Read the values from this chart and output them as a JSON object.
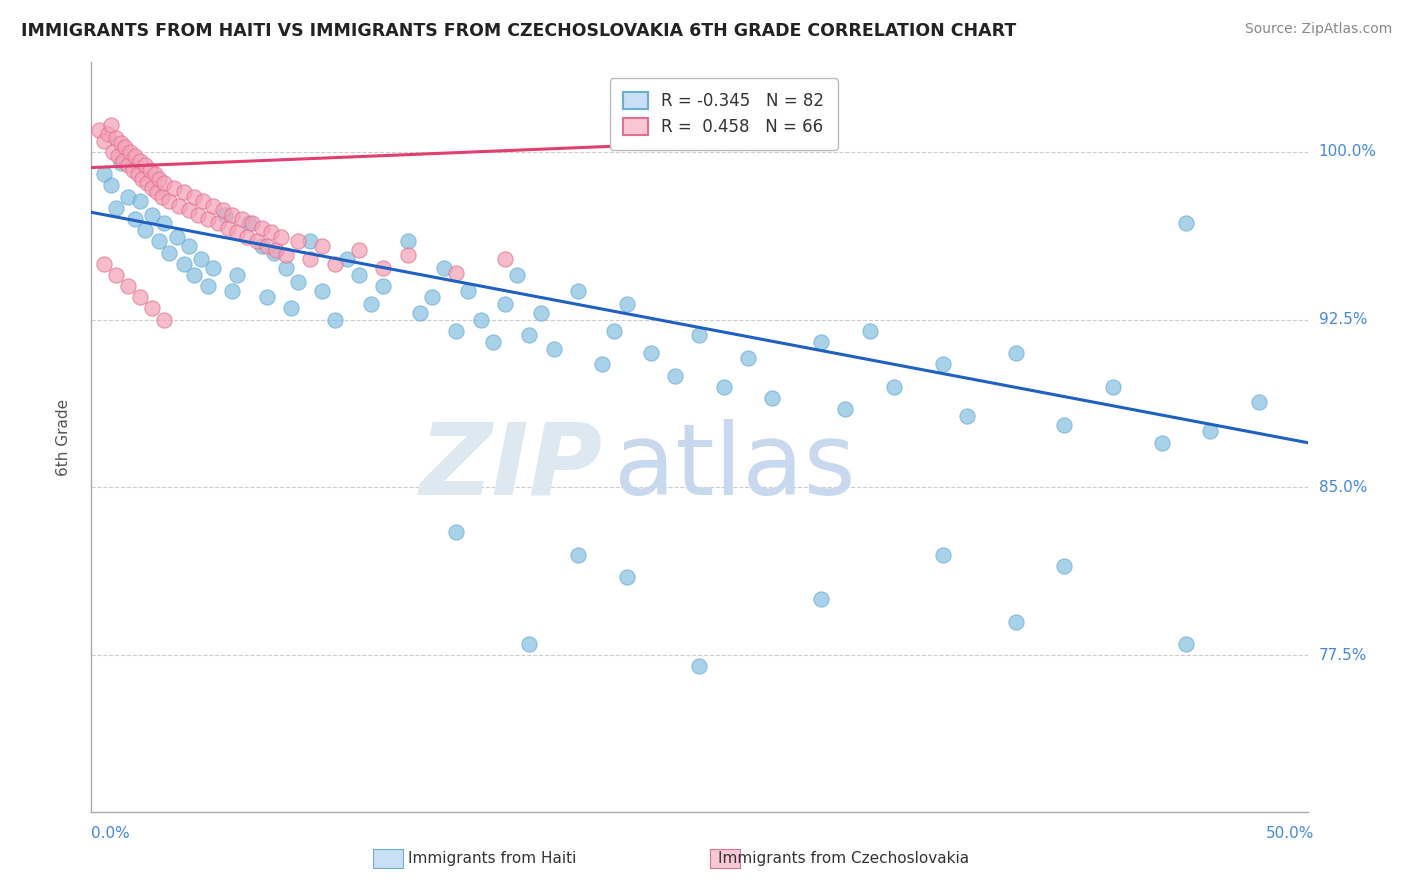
{
  "title": "IMMIGRANTS FROM HAITI VS IMMIGRANTS FROM CZECHOSLOVAKIA 6TH GRADE CORRELATION CHART",
  "source": "Source: ZipAtlas.com",
  "ylabel": "6th Grade",
  "xmin": 0.0,
  "xmax": 0.5,
  "ymin": 0.705,
  "ymax": 1.04,
  "yticks": [
    0.775,
    0.85,
    0.925,
    1.0
  ],
  "ytick_labels": [
    "77.5%",
    "85.0%",
    "92.5%",
    "100.0%"
  ],
  "haiti_color": "#85bfe0",
  "haiti_edge": "#6aaed6",
  "czech_color": "#f4a0b5",
  "czech_edge": "#e07090",
  "haiti_R": -0.345,
  "haiti_N": 82,
  "czech_R": 0.458,
  "czech_N": 66,
  "haiti_line_color": "#2060c0",
  "czech_line_color": "#e04070",
  "haiti_line_x0": 0.0,
  "haiti_line_y0": 0.973,
  "haiti_line_x1": 0.5,
  "haiti_line_y1": 0.87,
  "czech_line_x0": 0.0,
  "czech_line_y0": 0.993,
  "czech_line_x1": 0.27,
  "czech_line_y1": 1.005,
  "haiti_dots": [
    [
      0.005,
      0.99
    ],
    [
      0.008,
      0.985
    ],
    [
      0.01,
      0.975
    ],
    [
      0.012,
      0.995
    ],
    [
      0.015,
      0.98
    ],
    [
      0.018,
      0.97
    ],
    [
      0.02,
      0.978
    ],
    [
      0.022,
      0.965
    ],
    [
      0.025,
      0.972
    ],
    [
      0.028,
      0.96
    ],
    [
      0.03,
      0.968
    ],
    [
      0.032,
      0.955
    ],
    [
      0.035,
      0.962
    ],
    [
      0.038,
      0.95
    ],
    [
      0.04,
      0.958
    ],
    [
      0.042,
      0.945
    ],
    [
      0.045,
      0.952
    ],
    [
      0.048,
      0.94
    ],
    [
      0.05,
      0.948
    ],
    [
      0.055,
      0.972
    ],
    [
      0.058,
      0.938
    ],
    [
      0.06,
      0.945
    ],
    [
      0.065,
      0.968
    ],
    [
      0.07,
      0.958
    ],
    [
      0.072,
      0.935
    ],
    [
      0.075,
      0.955
    ],
    [
      0.08,
      0.948
    ],
    [
      0.082,
      0.93
    ],
    [
      0.085,
      0.942
    ],
    [
      0.09,
      0.96
    ],
    [
      0.095,
      0.938
    ],
    [
      0.1,
      0.925
    ],
    [
      0.105,
      0.952
    ],
    [
      0.11,
      0.945
    ],
    [
      0.115,
      0.932
    ],
    [
      0.12,
      0.94
    ],
    [
      0.13,
      0.96
    ],
    [
      0.135,
      0.928
    ],
    [
      0.14,
      0.935
    ],
    [
      0.145,
      0.948
    ],
    [
      0.15,
      0.92
    ],
    [
      0.155,
      0.938
    ],
    [
      0.16,
      0.925
    ],
    [
      0.165,
      0.915
    ],
    [
      0.17,
      0.932
    ],
    [
      0.175,
      0.945
    ],
    [
      0.18,
      0.918
    ],
    [
      0.185,
      0.928
    ],
    [
      0.19,
      0.912
    ],
    [
      0.2,
      0.938
    ],
    [
      0.21,
      0.905
    ],
    [
      0.215,
      0.92
    ],
    [
      0.22,
      0.932
    ],
    [
      0.23,
      0.91
    ],
    [
      0.24,
      0.9
    ],
    [
      0.25,
      0.918
    ],
    [
      0.26,
      0.895
    ],
    [
      0.27,
      0.908
    ],
    [
      0.28,
      0.89
    ],
    [
      0.3,
      0.915
    ],
    [
      0.31,
      0.885
    ],
    [
      0.32,
      0.92
    ],
    [
      0.33,
      0.895
    ],
    [
      0.35,
      0.905
    ],
    [
      0.36,
      0.882
    ],
    [
      0.38,
      0.91
    ],
    [
      0.4,
      0.878
    ],
    [
      0.42,
      0.895
    ],
    [
      0.44,
      0.87
    ],
    [
      0.45,
      0.968
    ],
    [
      0.46,
      0.875
    ],
    [
      0.48,
      0.888
    ],
    [
      0.15,
      0.83
    ],
    [
      0.2,
      0.82
    ],
    [
      0.22,
      0.81
    ],
    [
      0.3,
      0.8
    ],
    [
      0.35,
      0.82
    ],
    [
      0.38,
      0.79
    ],
    [
      0.4,
      0.815
    ],
    [
      0.45,
      0.78
    ],
    [
      0.18,
      0.78
    ],
    [
      0.25,
      0.77
    ]
  ],
  "czech_dots": [
    [
      0.003,
      1.01
    ],
    [
      0.005,
      1.005
    ],
    [
      0.007,
      1.008
    ],
    [
      0.008,
      1.012
    ],
    [
      0.009,
      1.0
    ],
    [
      0.01,
      1.006
    ],
    [
      0.011,
      0.998
    ],
    [
      0.012,
      1.004
    ],
    [
      0.013,
      0.996
    ],
    [
      0.014,
      1.002
    ],
    [
      0.015,
      0.994
    ],
    [
      0.016,
      1.0
    ],
    [
      0.017,
      0.992
    ],
    [
      0.018,
      0.998
    ],
    [
      0.019,
      0.99
    ],
    [
      0.02,
      0.996
    ],
    [
      0.021,
      0.988
    ],
    [
      0.022,
      0.994
    ],
    [
      0.023,
      0.986
    ],
    [
      0.024,
      0.992
    ],
    [
      0.025,
      0.984
    ],
    [
      0.026,
      0.99
    ],
    [
      0.027,
      0.982
    ],
    [
      0.028,
      0.988
    ],
    [
      0.029,
      0.98
    ],
    [
      0.03,
      0.986
    ],
    [
      0.032,
      0.978
    ],
    [
      0.034,
      0.984
    ],
    [
      0.036,
      0.976
    ],
    [
      0.038,
      0.982
    ],
    [
      0.04,
      0.974
    ],
    [
      0.042,
      0.98
    ],
    [
      0.044,
      0.972
    ],
    [
      0.046,
      0.978
    ],
    [
      0.048,
      0.97
    ],
    [
      0.05,
      0.976
    ],
    [
      0.052,
      0.968
    ],
    [
      0.054,
      0.974
    ],
    [
      0.056,
      0.966
    ],
    [
      0.058,
      0.972
    ],
    [
      0.06,
      0.964
    ],
    [
      0.062,
      0.97
    ],
    [
      0.064,
      0.962
    ],
    [
      0.066,
      0.968
    ],
    [
      0.068,
      0.96
    ],
    [
      0.07,
      0.966
    ],
    [
      0.072,
      0.958
    ],
    [
      0.074,
      0.964
    ],
    [
      0.076,
      0.956
    ],
    [
      0.078,
      0.962
    ],
    [
      0.08,
      0.954
    ],
    [
      0.085,
      0.96
    ],
    [
      0.09,
      0.952
    ],
    [
      0.095,
      0.958
    ],
    [
      0.1,
      0.95
    ],
    [
      0.11,
      0.956
    ],
    [
      0.12,
      0.948
    ],
    [
      0.13,
      0.954
    ],
    [
      0.15,
      0.946
    ],
    [
      0.17,
      0.952
    ],
    [
      0.005,
      0.95
    ],
    [
      0.01,
      0.945
    ],
    [
      0.015,
      0.94
    ],
    [
      0.02,
      0.935
    ],
    [
      0.025,
      0.93
    ],
    [
      0.03,
      0.925
    ]
  ]
}
